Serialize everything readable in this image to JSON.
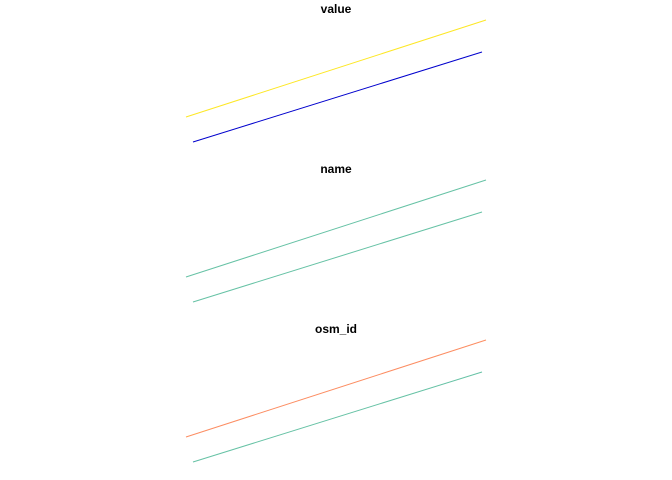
{
  "chart_data": [
    {
      "type": "line",
      "title": "value",
      "grid": false,
      "series": [
        {
          "color": "#FDE725",
          "x": [
            0,
            1
          ],
          "y": [
            0,
            1
          ]
        },
        {
          "color": "#0000CD",
          "x": [
            0,
            1
          ],
          "y": [
            0,
            1
          ]
        }
      ]
    },
    {
      "type": "line",
      "title": "name",
      "grid": false,
      "series": [
        {
          "color": "#66C2A5",
          "x": [
            0,
            1
          ],
          "y": [
            0,
            1
          ]
        },
        {
          "color": "#66C2A5",
          "x": [
            0,
            1
          ],
          "y": [
            0,
            1
          ]
        }
      ]
    },
    {
      "type": "line",
      "title": "osm_id",
      "grid": false,
      "series": [
        {
          "color": "#FC8D62",
          "x": [
            0,
            1
          ],
          "y": [
            0,
            1
          ]
        },
        {
          "color": "#66C2A5",
          "x": [
            0,
            1
          ],
          "y": [
            0,
            1
          ]
        }
      ]
    }
  ]
}
